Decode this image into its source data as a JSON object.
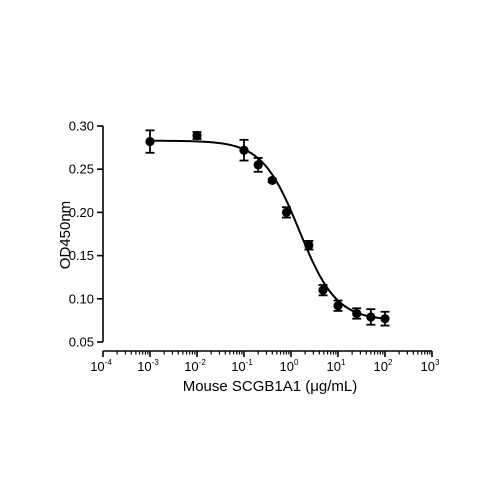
{
  "chart_data": {
    "type": "scatter",
    "title": "",
    "xlabel": "Mouse SCGB1A1 (μg/mL)",
    "ylabel": "OD450nm",
    "xscale": "log",
    "xlim": [
      0.0001,
      1000
    ],
    "ylim": [
      0.05,
      0.3
    ],
    "x_tick_labels": [
      {
        "base": "10",
        "exp": "-4"
      },
      {
        "base": "10",
        "exp": "-3"
      },
      {
        "base": "10",
        "exp": "-2"
      },
      {
        "base": "10",
        "exp": "-1"
      },
      {
        "base": "10",
        "exp": "0"
      },
      {
        "base": "10",
        "exp": "1"
      },
      {
        "base": "10",
        "exp": "2"
      },
      {
        "base": "10",
        "exp": "3"
      }
    ],
    "y_tick_labels": [
      "0.05",
      "0.10",
      "0.15",
      "0.20",
      "0.25",
      "0.30"
    ],
    "grid": false,
    "legend": "none",
    "series": [
      {
        "points": [
          {
            "x": 0.001,
            "y": 0.282,
            "err": 0.013
          },
          {
            "x": 0.01,
            "y": 0.289,
            "err": 0.004
          },
          {
            "x": 0.1,
            "y": 0.272,
            "err": 0.012
          },
          {
            "x": 0.2,
            "y": 0.255,
            "err": 0.008
          },
          {
            "x": 0.4,
            "y": 0.237,
            "err": 0.002
          },
          {
            "x": 0.8,
            "y": 0.2,
            "err": 0.006
          },
          {
            "x": 2.4,
            "y": 0.162,
            "err": 0.005
          },
          {
            "x": 4.8,
            "y": 0.11,
            "err": 0.006
          },
          {
            "x": 10,
            "y": 0.092,
            "err": 0.006
          },
          {
            "x": 25,
            "y": 0.083,
            "err": 0.006
          },
          {
            "x": 50,
            "y": 0.079,
            "err": 0.009
          },
          {
            "x": 100,
            "y": 0.077,
            "err": 0.008
          }
        ],
        "fit_curve": {
          "model": "4PL",
          "top": 0.283,
          "bottom": 0.075,
          "ec50": 1.5,
          "hill_slope": 1.1,
          "descending": true
        }
      }
    ],
    "colors": {
      "marker": "#000000",
      "line": "#000000"
    }
  }
}
